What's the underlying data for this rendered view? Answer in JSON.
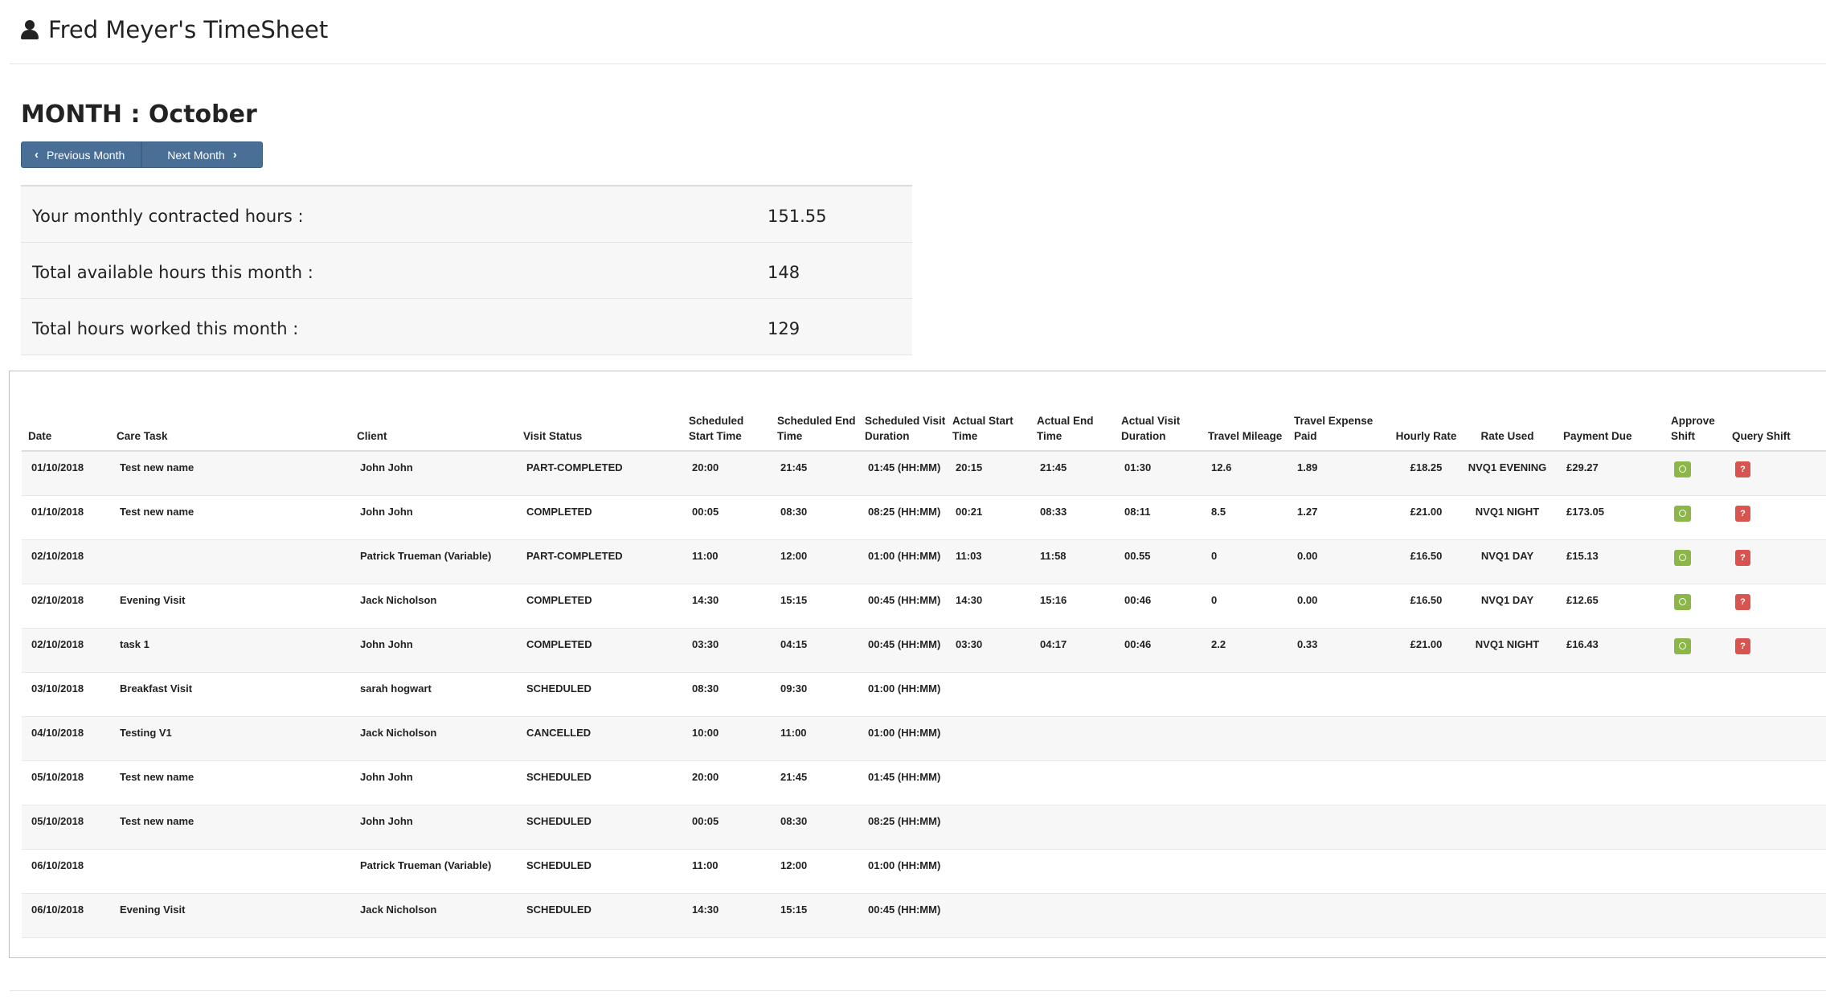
{
  "header": {
    "title": "Fred Meyer's TimeSheet"
  },
  "month": {
    "title": "MONTH : October",
    "prev_label": "Previous Month",
    "next_label": "Next Month"
  },
  "summary": [
    {
      "label": "Your monthly contracted hours :",
      "value": "151.55"
    },
    {
      "label": "Total available hours this month :",
      "value": "148"
    },
    {
      "label": "Total hours worked this month :",
      "value": "129"
    }
  ],
  "table": {
    "columns": {
      "date": "Date",
      "care_task": "Care Task",
      "client": "Client",
      "visit_status": "Visit Status",
      "sched_start": "Scheduled Start Time",
      "sched_end": "Scheduled End Time",
      "sched_duration": "Scheduled Visit Duration",
      "actual_start": "Actual Start Time",
      "actual_end": "Actual End Time",
      "actual_duration": "Actual Visit Duration",
      "travel_mileage": "Travel Mileage",
      "travel_expense": "Travel Expense Paid",
      "hourly_rate": "Hourly Rate",
      "rate_used": "Rate Used",
      "payment_due": "Payment Due",
      "approve": "Approve Shift",
      "query": "Query Shift"
    },
    "query_label": "?",
    "rows": [
      {
        "date": "01/10/2018",
        "task": "Test new name",
        "client": "John John",
        "status": "PART-COMPLETED",
        "s_start": "20:00",
        "s_end": "21:45",
        "s_dur": "01:45 (HH:MM)",
        "a_start": "20:15",
        "a_end": "21:45",
        "a_dur": "01:30",
        "mileage": "12.6",
        "expense": "1.89",
        "rate": "£18.25",
        "rate_used": "NVQ1 EVENING",
        "payment": "£29.27"
      },
      {
        "date": "01/10/2018",
        "task": "Test new name",
        "client": "John John",
        "status": "COMPLETED",
        "s_start": "00:05",
        "s_end": "08:30",
        "s_dur": "08:25 (HH:MM)",
        "a_start": "00:21",
        "a_end": "08:33",
        "a_dur": "08:11",
        "mileage": "8.5",
        "expense": "1.27",
        "rate": "£21.00",
        "rate_used": "NVQ1 NIGHT",
        "payment": "£173.05"
      },
      {
        "date": "02/10/2018",
        "task": "",
        "client": "Patrick Trueman (Variable)",
        "status": "PART-COMPLETED",
        "s_start": "11:00",
        "s_end": "12:00",
        "s_dur": "01:00 (HH:MM)",
        "a_start": "11:03",
        "a_end": "11:58",
        "a_dur": "00.55",
        "mileage": "0",
        "expense": "0.00",
        "rate": "£16.50",
        "rate_used": "NVQ1 DAY",
        "payment": "£15.13"
      },
      {
        "date": "02/10/2018",
        "task": "Evening Visit",
        "client": "Jack Nicholson",
        "status": "COMPLETED",
        "s_start": "14:30",
        "s_end": "15:15",
        "s_dur": "00:45 (HH:MM)",
        "a_start": "14:30",
        "a_end": "15:16",
        "a_dur": "00:46",
        "mileage": "0",
        "expense": "0.00",
        "rate": "£16.50",
        "rate_used": "NVQ1 DAY",
        "payment": "£12.65"
      },
      {
        "date": "02/10/2018",
        "task": "task 1",
        "client": "John John",
        "status": "COMPLETED",
        "s_start": "03:30",
        "s_end": "04:15",
        "s_dur": "00:45 (HH:MM)",
        "a_start": "03:30",
        "a_end": "04:17",
        "a_dur": "00:46",
        "mileage": "2.2",
        "expense": "0.33",
        "rate": "£21.00",
        "rate_used": "NVQ1 NIGHT",
        "payment": "£16.43"
      },
      {
        "date": "03/10/2018",
        "task": "Breakfast Visit",
        "client": "sarah hogwart",
        "status": "SCHEDULED",
        "s_start": "08:30",
        "s_end": "09:30",
        "s_dur": "01:00 (HH:MM)"
      },
      {
        "date": "04/10/2018",
        "task": "Testing V1",
        "client": "Jack Nicholson",
        "status": "CANCELLED",
        "s_start": "10:00",
        "s_end": "11:00",
        "s_dur": "01:00 (HH:MM)"
      },
      {
        "date": "05/10/2018",
        "task": "Test new name",
        "client": "John John",
        "status": "SCHEDULED",
        "s_start": "20:00",
        "s_end": "21:45",
        "s_dur": "01:45 (HH:MM)"
      },
      {
        "date": "05/10/2018",
        "task": "Test new name",
        "client": "John John",
        "status": "SCHEDULED",
        "s_start": "00:05",
        "s_end": "08:30",
        "s_dur": "08:25 (HH:MM)"
      },
      {
        "date": "06/10/2018",
        "task": "",
        "client": "Patrick Trueman (Variable)",
        "status": "SCHEDULED",
        "s_start": "11:00",
        "s_end": "12:00",
        "s_dur": "01:00 (HH:MM)"
      },
      {
        "date": "06/10/2018",
        "task": "Evening Visit",
        "client": "Jack Nicholson",
        "status": "SCHEDULED",
        "s_start": "14:30",
        "s_end": "15:15",
        "s_dur": "00:45 (HH:MM)"
      }
    ]
  },
  "colors": {
    "button": "#4a6f96",
    "approve": "#8cb54a",
    "query": "#d9534f",
    "panel_border": "#a3cfc4"
  },
  "icons": {
    "header": "user-icon",
    "prev": "chevron-left-icon",
    "next": "chevron-right-icon",
    "approve": "check-circle-icon"
  }
}
